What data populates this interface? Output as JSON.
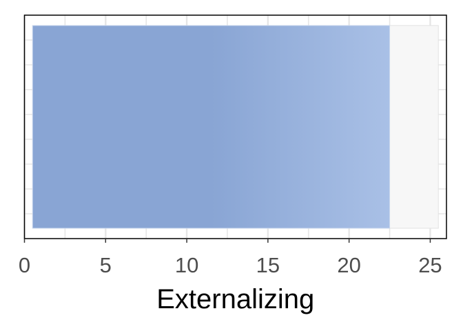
{
  "chart_data": {
    "type": "bar",
    "orientation": "horizontal",
    "categories": [
      ""
    ],
    "values": [
      22.5
    ],
    "bar_start": 0.5,
    "xlabel": "Externalizing",
    "ylabel": "",
    "xlim": [
      0,
      26
    ],
    "x_ticks": [
      0,
      5,
      10,
      15,
      20,
      25
    ],
    "grid": true,
    "legend": "none",
    "colors": {
      "bar_left": "#89a5d4",
      "bar_right": "#a9c0e6",
      "grid": "#e6e6e6",
      "frame": "#000000"
    }
  }
}
